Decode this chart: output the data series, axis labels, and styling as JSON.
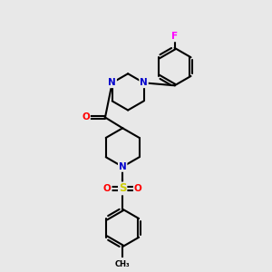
{
  "background_color": "#e8e8e8",
  "atom_color_N": "#0000cc",
  "atom_color_O": "#ff0000",
  "atom_color_S": "#cccc00",
  "atom_color_F": "#ff00ff",
  "atom_color_C": "#000000",
  "bond_color": "#000000",
  "bond_width": 1.5,
  "figsize": [
    3.0,
    3.0
  ],
  "dpi": 100,
  "xlim": [
    0,
    10
  ],
  "ylim": [
    0,
    10
  ]
}
